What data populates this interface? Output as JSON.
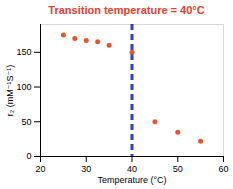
{
  "chart_data": {
    "type": "scatter",
    "title": "Transition temperature = 40°C",
    "title_color": "#e8412c",
    "x_label": "Temperature (°C)",
    "y_label": "r₂ (mM⁻¹S⁻¹)",
    "x": [
      25,
      27.5,
      30,
      32.5,
      35,
      40,
      45,
      50,
      55
    ],
    "values": [
      175,
      170,
      167,
      165,
      160,
      150,
      50,
      35,
      22
    ],
    "color": "#e8552a",
    "marker": "circle",
    "xlim": [
      20,
      60
    ],
    "xticks": [
      20,
      30,
      40,
      50,
      60
    ],
    "ylim": [
      0,
      190
    ],
    "yticks": [
      0,
      50,
      100,
      150
    ],
    "grid": false,
    "vline": {
      "x": 40,
      "color": "#2b3fd6",
      "line_style": "dashed"
    }
  }
}
